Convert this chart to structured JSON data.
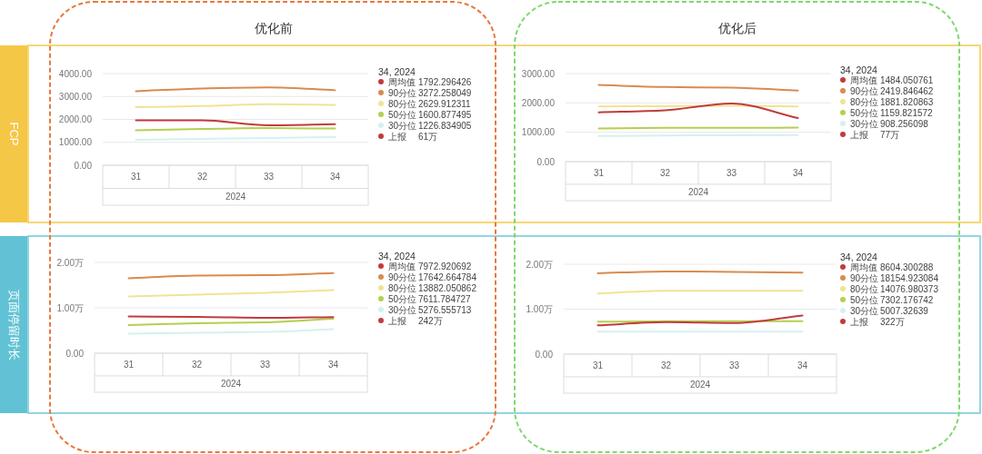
{
  "chart_data": [
    {
      "type": "line",
      "title": "优化前",
      "ylabel": "FCP",
      "xlabel": "2024",
      "categories": [
        "31",
        "32",
        "33",
        "34"
      ],
      "ylim": [
        0,
        4000
      ],
      "yticks": [
        {
          "value": 0,
          "label": "0.00"
        },
        {
          "value": 1000,
          "label": "1000.00"
        },
        {
          "value": 2000,
          "label": "2000.00"
        },
        {
          "value": 3000,
          "label": "3000.00"
        },
        {
          "value": 4000,
          "label": "4000.00"
        }
      ],
      "grid": "y",
      "legend": "right",
      "legend_title": "34, 2024",
      "series": [
        {
          "name": "周均值",
          "color": "#c23b3b",
          "values": [
            1960,
            1960,
            1740,
            1792.296426
          ]
        },
        {
          "name": "90分位",
          "color": "#d98b4f",
          "values": [
            3230,
            3350,
            3400,
            3272.258049
          ]
        },
        {
          "name": "80分位",
          "color": "#f2e394",
          "values": [
            2530,
            2580,
            2660,
            2629.912311
          ]
        },
        {
          "name": "50分位",
          "color": "#b5cf4f",
          "values": [
            1520,
            1580,
            1620,
            1600.877495
          ]
        },
        {
          "name": "30分位",
          "color": "#d4f1ee",
          "values": [
            1110,
            1150,
            1190,
            1226.834905
          ]
        }
      ],
      "annotations": [
        "1792.296426",
        "3272.258049",
        "2629.912311",
        "1600.877495",
        "1226.834905",
        "上报 61万"
      ]
    },
    {
      "type": "line",
      "title": "优化后",
      "xlabel": "2024",
      "categories": [
        "31",
        "32",
        "33",
        "34"
      ],
      "ylim": [
        0,
        3000
      ],
      "yticks": [
        {
          "value": 0,
          "label": "0.00"
        },
        {
          "value": 1000,
          "label": "1000.00"
        },
        {
          "value": 2000,
          "label": "2000.00"
        },
        {
          "value": 3000,
          "label": "3000.00"
        }
      ],
      "grid": "y",
      "legend": "right",
      "legend_title": "34, 2024",
      "series": [
        {
          "name": "周均值",
          "color": "#c23b3b",
          "values": [
            1680,
            1750,
            1980,
            1484.050761
          ]
        },
        {
          "name": "90分位",
          "color": "#d98b4f",
          "values": [
            2610,
            2540,
            2520,
            2419.846462
          ]
        },
        {
          "name": "80分位",
          "color": "#f2e394",
          "values": [
            1880,
            1890,
            1900,
            1881.820863
          ]
        },
        {
          "name": "50分位",
          "color": "#b5cf4f",
          "values": [
            1130,
            1150,
            1150,
            1159.821572
          ]
        },
        {
          "name": "30分位",
          "color": "#d4f1ee",
          "values": [
            870,
            890,
            900,
            908.256098
          ]
        }
      ],
      "annotations": [
        "1484.050761",
        "2419.846462",
        "1881.820863",
        "1159.821572",
        "908.256098",
        "上报 77万"
      ]
    },
    {
      "type": "line",
      "ylabel": "页面停留时长",
      "xlabel": "2024",
      "categories": [
        "31",
        "32",
        "33",
        "34"
      ],
      "ylim": [
        0,
        2
      ],
      "yticks": [
        {
          "value": 0,
          "label": "0.00"
        },
        {
          "value": 1,
          "label": "1.00万"
        },
        {
          "value": 2,
          "label": "2.00万"
        }
      ],
      "grid": "y",
      "legend": "right",
      "legend_title": "34, 2024",
      "series": [
        {
          "name": "周均值",
          "color": "#c23b3b",
          "values": [
            0.81,
            0.8,
            0.78,
            0.7972920692
          ]
        },
        {
          "name": "90分位",
          "color": "#d98b4f",
          "values": [
            1.65,
            1.71,
            1.72,
            1.7642664784
          ]
        },
        {
          "name": "80分位",
          "color": "#f2e394",
          "values": [
            1.25,
            1.29,
            1.33,
            1.3882050862
          ]
        },
        {
          "name": "50分位",
          "color": "#b5cf4f",
          "values": [
            0.62,
            0.66,
            0.68,
            0.7611784727
          ]
        },
        {
          "name": "30分位",
          "color": "#d4f1ee",
          "values": [
            0.43,
            0.45,
            0.47,
            0.5276555713
          ]
        }
      ],
      "annotations": [
        "7972.920692",
        "17642.664784",
        "13882.050862",
        "7611.784727",
        "5276.555713",
        "上报 242万"
      ]
    },
    {
      "type": "line",
      "xlabel": "2024",
      "categories": [
        "31",
        "32",
        "33",
        "34"
      ],
      "ylim": [
        0,
        2
      ],
      "yticks": [
        {
          "value": 0,
          "label": "0.00"
        },
        {
          "value": 1,
          "label": "1.00万"
        },
        {
          "value": 2,
          "label": "2.00万"
        }
      ],
      "grid": "y",
      "legend": "right",
      "legend_title": "34, 2024",
      "series": [
        {
          "name": "周均值",
          "color": "#c23b3b",
          "values": [
            0.64,
            0.71,
            0.69,
            0.8604300288
          ]
        },
        {
          "name": "90分位",
          "color": "#d98b4f",
          "values": [
            1.8,
            1.84,
            1.83,
            1.8154923084
          ]
        },
        {
          "name": "80分位",
          "color": "#f2e394",
          "values": [
            1.35,
            1.41,
            1.41,
            1.4076980373
          ]
        },
        {
          "name": "50分位",
          "color": "#b5cf4f",
          "values": [
            0.72,
            0.73,
            0.73,
            0.7302176742
          ]
        },
        {
          "name": "30分位",
          "color": "#d4f1ee",
          "values": [
            0.5,
            0.5,
            0.5,
            0.500732639
          ]
        }
      ],
      "annotations": [
        "8604.300288",
        "18154.923084",
        "14076.980373",
        "7302.176742",
        "5007.32639",
        "上报 322万"
      ]
    }
  ]
}
